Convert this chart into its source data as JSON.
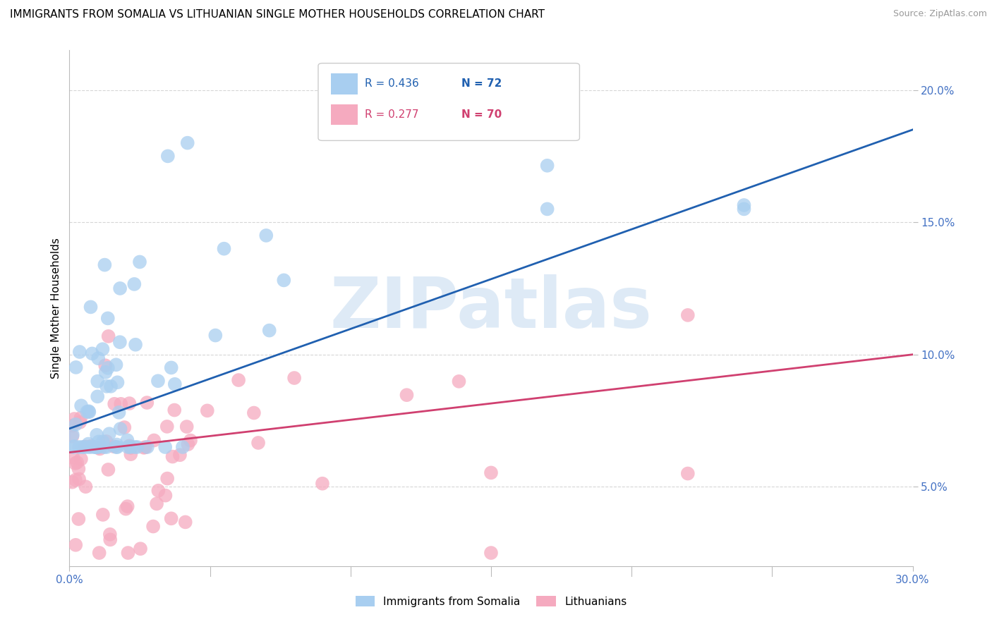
{
  "title": "IMMIGRANTS FROM SOMALIA VS LITHUANIAN SINGLE MOTHER HOUSEHOLDS CORRELATION CHART",
  "source": "Source: ZipAtlas.com",
  "ylabel": "Single Mother Households",
  "ytick_vals": [
    0.05,
    0.1,
    0.15,
    0.2
  ],
  "ytick_labels": [
    "5.0%",
    "10.0%",
    "15.0%",
    "20.0%"
  ],
  "xlim": [
    0.0,
    0.3
  ],
  "ylim": [
    0.02,
    0.215
  ],
  "blue_R": "R = 0.436",
  "blue_N": "N = 72",
  "pink_R": "R = 0.277",
  "pink_N": "N = 70",
  "blue_color": "#A8CEF0",
  "pink_color": "#F5AABF",
  "blue_line_color": "#2060B0",
  "pink_line_color": "#D04070",
  "legend_label_blue": "Immigrants from Somalia",
  "legend_label_pink": "Lithuanians",
  "title_fontsize": 11,
  "source_fontsize": 9,
  "tick_color": "#4472C4",
  "watermark_text": "ZIPatlas",
  "watermark_color": "#C8DCF0",
  "blue_trend_start_y": 0.072,
  "blue_trend_end_y": 0.185,
  "pink_trend_start_y": 0.063,
  "pink_trend_end_y": 0.1
}
